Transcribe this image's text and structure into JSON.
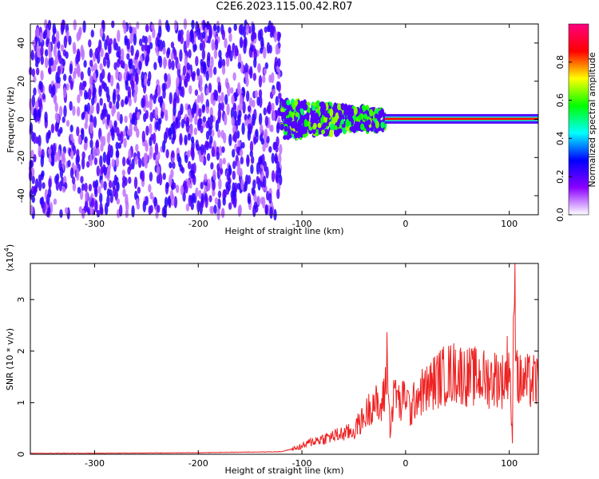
{
  "title": "C2E6.2023.115.00.42.R07",
  "chart_data": [
    {
      "type": "heatmap",
      "xlabel": "Height of straight line (km)",
      "ylabel": "Frequency (Hz)",
      "xlim": [
        -362,
        128
      ],
      "ylim": [
        -50,
        50
      ],
      "xticks": [
        -300,
        -200,
        -100,
        0,
        100
      ],
      "yticks": [
        -40,
        -20,
        0,
        20,
        40
      ],
      "colorbar": {
        "label": "Normalized spectral amplitude",
        "range": [
          0,
          1
        ],
        "ticks": [
          0.0,
          0.2,
          0.4,
          0.6,
          0.8
        ],
        "colors": [
          "#ffffff",
          "#8a00ff",
          "#0000ff",
          "#00ffff",
          "#00ff00",
          "#ffff00",
          "#ff0000",
          "#ff0080"
        ]
      },
      "regions": [
        {
          "x": [
            -362,
            -120
          ],
          "y": [
            -50,
            50
          ],
          "amplitude": 0.05,
          "pattern": "noise"
        },
        {
          "x": [
            -120,
            -20
          ],
          "y": [
            -10,
            10
          ],
          "amplitude": 0.45,
          "pattern": "band"
        },
        {
          "x": [
            -20,
            128
          ],
          "y": [
            -1,
            1.5
          ],
          "amplitude": 0.85,
          "pattern": "line"
        }
      ]
    },
    {
      "type": "line",
      "xlabel": "Height of straight line (km)",
      "ylabel": "SNR (10 * v/v)",
      "y_multiplier": "(x10^4)",
      "y_multiplier_base": "(x10",
      "y_multiplier_exp": "4",
      "y_multiplier_close": ")",
      "xlim": [
        -362,
        128
      ],
      "ylim": [
        0,
        3.7
      ],
      "xticks": [
        -300,
        -200,
        -100,
        0,
        100
      ],
      "yticks": [
        0,
        1,
        2,
        3
      ],
      "color": "#ee2222",
      "series": [
        {
          "x": [
            -362,
            -300,
            -200,
            -120,
            -100,
            -90,
            -80,
            -70,
            -60,
            -50,
            -45,
            -40,
            -35,
            -30,
            -25,
            -20,
            -18,
            -15,
            -10,
            -5,
            0,
            5,
            10,
            20,
            30,
            40,
            50,
            60,
            70,
            80,
            90,
            95,
            100,
            103,
            105,
            108,
            110,
            120,
            128
          ],
          "y": [
            0.02,
            0.02,
            0.03,
            0.05,
            0.15,
            0.25,
            0.3,
            0.35,
            0.4,
            0.45,
            0.6,
            0.7,
            0.9,
            1.05,
            0.8,
            1.2,
            1.9,
            0.5,
            1.3,
            0.9,
            1.2,
            0.8,
            1.15,
            1.25,
            1.45,
            1.55,
            1.6,
            1.5,
            1.5,
            1.45,
            1.5,
            1.4,
            1.9,
            0.25,
            3.7,
            1.5,
            1.4,
            1.4,
            1.4
          ]
        }
      ]
    }
  ]
}
